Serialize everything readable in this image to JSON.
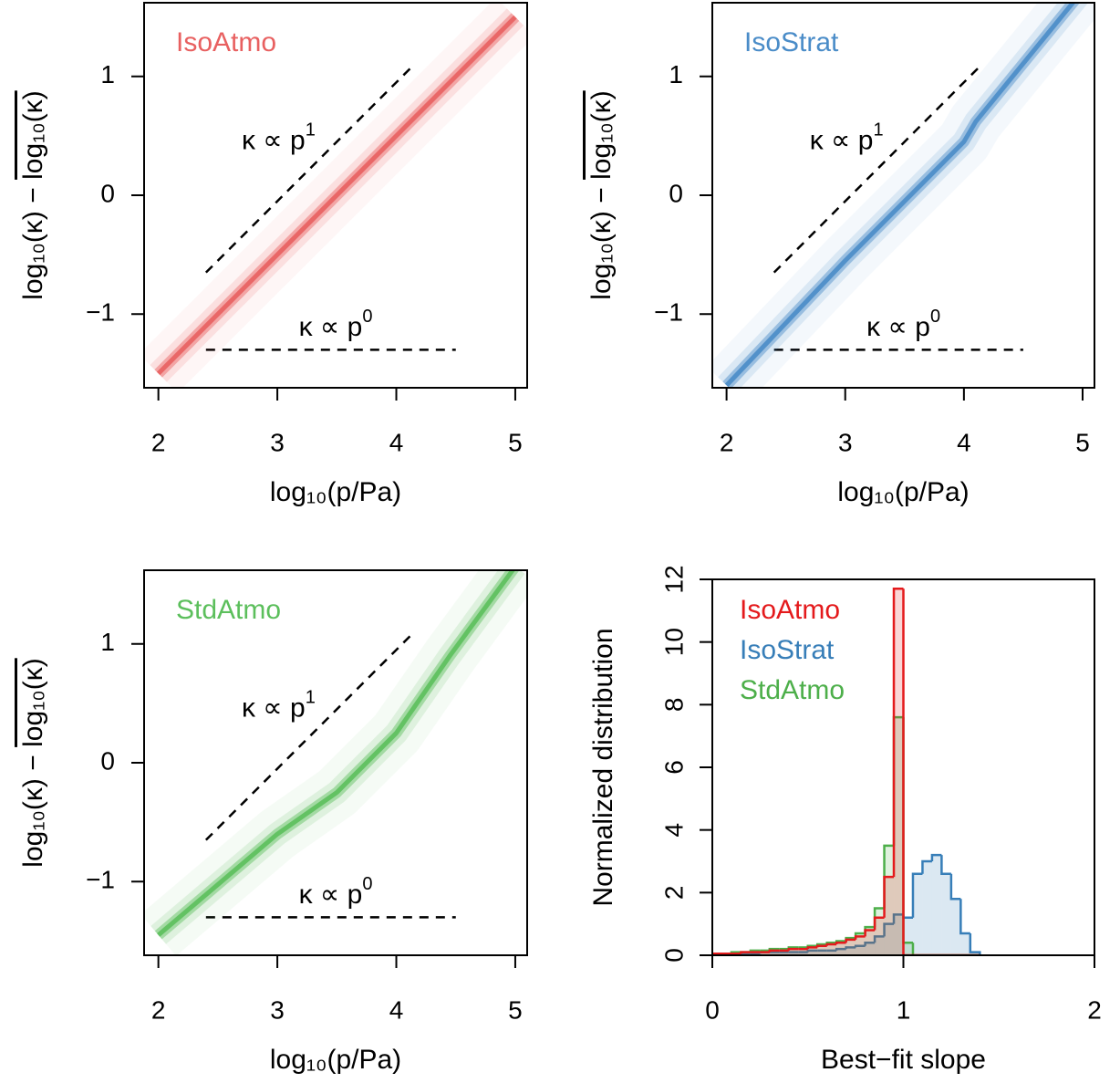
{
  "chart_data": [
    {
      "type": "line",
      "xlabel": "log₁₀(p/Pa)",
      "ylabel": {
        "main": "log₁₀(κ) − ",
        "overlined": "log₁₀(κ)"
      },
      "xlim": [
        1.88,
        5.1
      ],
      "ylim": [
        -1.62,
        1.62
      ],
      "xticks": [
        2,
        3,
        4,
        5
      ],
      "yticks": [
        {
          "value": -1,
          "label": "−1"
        },
        0,
        1
      ],
      "series": [
        {
          "name": "IsoAtmo",
          "color": "#e86060",
          "x": [
            2,
            3,
            4,
            5
          ],
          "values": [
            -1.5,
            -0.5,
            0.5,
            1.5
          ]
        }
      ],
      "reference_lines": [
        {
          "x": [
            2.4,
            4.15
          ],
          "y": [
            -0.65,
            1.1
          ]
        },
        {
          "x": [
            2.4,
            4.5
          ],
          "y": [
            -1.3,
            -1.3
          ]
        }
      ],
      "annotations": [
        {
          "text": "κ ∝ p",
          "exponent": "1"
        },
        {
          "text": "κ ∝ p",
          "exponent": "0"
        }
      ]
    },
    {
      "type": "line",
      "xlabel": "log₁₀(p/Pa)",
      "ylabel": {
        "main": "log₁₀(κ) − ",
        "overlined": "log₁₀(κ)"
      },
      "xlim": [
        1.88,
        5.1
      ],
      "ylim": [
        -1.62,
        1.62
      ],
      "xticks": [
        2,
        3,
        4,
        5
      ],
      "yticks": [
        {
          "value": -1,
          "label": "−1"
        },
        0,
        1
      ],
      "series": [
        {
          "name": "IsoStrat",
          "color": "#4a8cc8",
          "x": [
            2,
            3,
            4,
            4.1,
            5
          ],
          "values": [
            -1.6,
            -0.55,
            0.45,
            0.62,
            1.72
          ]
        }
      ],
      "reference_lines": [
        {
          "x": [
            2.4,
            4.15
          ],
          "y": [
            -0.65,
            1.1
          ]
        },
        {
          "x": [
            2.4,
            4.5
          ],
          "y": [
            -1.3,
            -1.3
          ]
        }
      ],
      "annotations": [
        {
          "text": "κ ∝ p",
          "exponent": "1"
        },
        {
          "text": "κ ∝ p",
          "exponent": "0"
        }
      ]
    },
    {
      "type": "line",
      "xlabel": "log₁₀(p/Pa)",
      "ylabel": {
        "main": "log₁₀(κ) − ",
        "overlined": "log₁₀(κ)"
      },
      "xlim": [
        1.88,
        5.1
      ],
      "ylim": [
        -1.62,
        1.62
      ],
      "xticks": [
        2,
        3,
        4,
        5
      ],
      "yticks": [
        {
          "value": -1,
          "label": "−1"
        },
        0,
        1
      ],
      "series": [
        {
          "name": "StdAtmo",
          "color": "#5cbf5c",
          "x": [
            2,
            3,
            3.5,
            4,
            4.45,
            5
          ],
          "values": [
            -1.45,
            -0.6,
            -0.25,
            0.25,
            0.9,
            1.65
          ]
        }
      ],
      "reference_lines": [
        {
          "x": [
            2.4,
            4.15
          ],
          "y": [
            -0.65,
            1.1
          ]
        },
        {
          "x": [
            2.4,
            4.5
          ],
          "y": [
            -1.3,
            -1.3
          ]
        }
      ],
      "annotations": [
        {
          "text": "κ ∝ p",
          "exponent": "1"
        },
        {
          "text": "κ ∝ p",
          "exponent": "0"
        }
      ]
    },
    {
      "type": "histogram",
      "xlabel": "Best−fit slope",
      "ylabel": "Normalized distribution",
      "xlim": [
        0,
        2
      ],
      "ylim": [
        0,
        12
      ],
      "xticks": [
        0,
        1,
        2
      ],
      "yticks": [
        0,
        2,
        4,
        6,
        8,
        10,
        12
      ],
      "bins": [
        0,
        0.05,
        0.1,
        0.15,
        0.2,
        0.25,
        0.3,
        0.35,
        0.4,
        0.45,
        0.5,
        0.55,
        0.6,
        0.65,
        0.7,
        0.75,
        0.8,
        0.85,
        0.9,
        0.95,
        1.0,
        1.05,
        1.1,
        1.15,
        1.2,
        1.25,
        1.3,
        1.35,
        1.4
      ],
      "series": [
        {
          "name": "IsoAtmo",
          "color": "#e41a1c",
          "values": [
            0.05,
            0.05,
            0.05,
            0.1,
            0.1,
            0.1,
            0.15,
            0.15,
            0.2,
            0.2,
            0.25,
            0.3,
            0.35,
            0.4,
            0.5,
            0.6,
            0.8,
            1.2,
            2.5,
            11.7,
            0,
            0,
            0,
            0,
            0,
            0,
            0,
            0
          ]
        },
        {
          "name": "IsoStrat",
          "color": "#377eb8",
          "values": [
            0.05,
            0.05,
            0.05,
            0.05,
            0.05,
            0.1,
            0.1,
            0.1,
            0.1,
            0.1,
            0.15,
            0.15,
            0.15,
            0.2,
            0.25,
            0.3,
            0.4,
            0.6,
            1.0,
            1.3,
            1.2,
            2.6,
            3.0,
            3.2,
            2.6,
            1.8,
            0.7,
            0.1
          ]
        },
        {
          "name": "StdAtmo",
          "color": "#4daf4a",
          "values": [
            0.05,
            0.05,
            0.1,
            0.1,
            0.15,
            0.15,
            0.2,
            0.2,
            0.25,
            0.25,
            0.3,
            0.35,
            0.4,
            0.45,
            0.55,
            0.7,
            0.9,
            1.5,
            3.5,
            7.6,
            0.4,
            0,
            0,
            0,
            0,
            0,
            0,
            0
          ]
        }
      ]
    }
  ]
}
